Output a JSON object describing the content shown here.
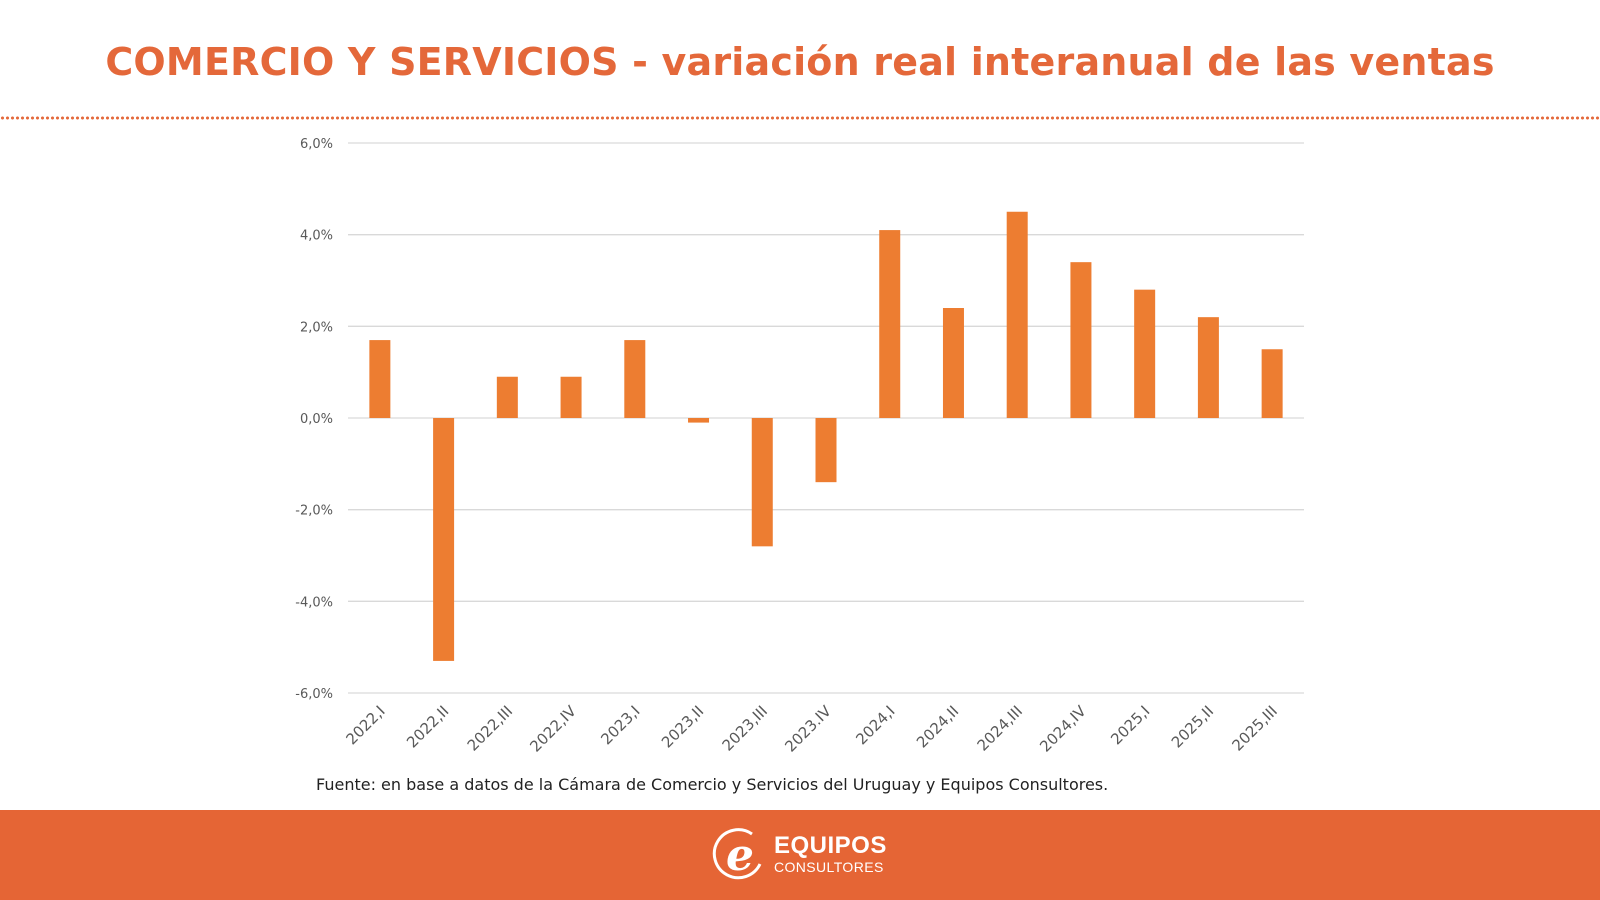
{
  "header": {
    "title": "COMERCIO Y SERVICIOS - variación real interanual de las ventas"
  },
  "chart_data": {
    "type": "bar",
    "title": "COMERCIO Y SERVICIOS - variación real interanual de las ventas",
    "xlabel": "",
    "ylabel": "",
    "categories": [
      "2022,I",
      "2022,II",
      "2022,III",
      "2022,IV",
      "2023,I",
      "2023,II",
      "2023,III",
      "2023.IV",
      "2024,I",
      "2024,II",
      "2024,III",
      "2024,IV",
      "2025,I",
      "2025,II",
      "2025,III"
    ],
    "values": [
      1.7,
      -5.3,
      0.9,
      0.9,
      1.7,
      -0.1,
      -2.8,
      -1.4,
      4.1,
      2.4,
      4.5,
      3.4,
      2.8,
      2.2,
      1.5
    ],
    "unit": "%",
    "ylim": [
      -6,
      6
    ],
    "yticks": [
      6,
      4,
      2,
      0,
      -2,
      -4,
      -6
    ],
    "ytick_labels": [
      "6,0%",
      "4,0%",
      "2,0%",
      "0,0%",
      "-2,0%",
      "-4,0%",
      "-6,0%"
    ],
    "grid": true,
    "legend": "none",
    "bar_color": "#ed7d31"
  },
  "source_note": "Fuente: en base a datos de la Cámara de Comercio y Servicios del Uruguay y Equipos Consultores.",
  "footer": {
    "logo_icon": "e-letter-logo",
    "brand_name": "EQUIPOS",
    "brand_sub": "CONSULTORES",
    "background_color": "#e56535"
  }
}
